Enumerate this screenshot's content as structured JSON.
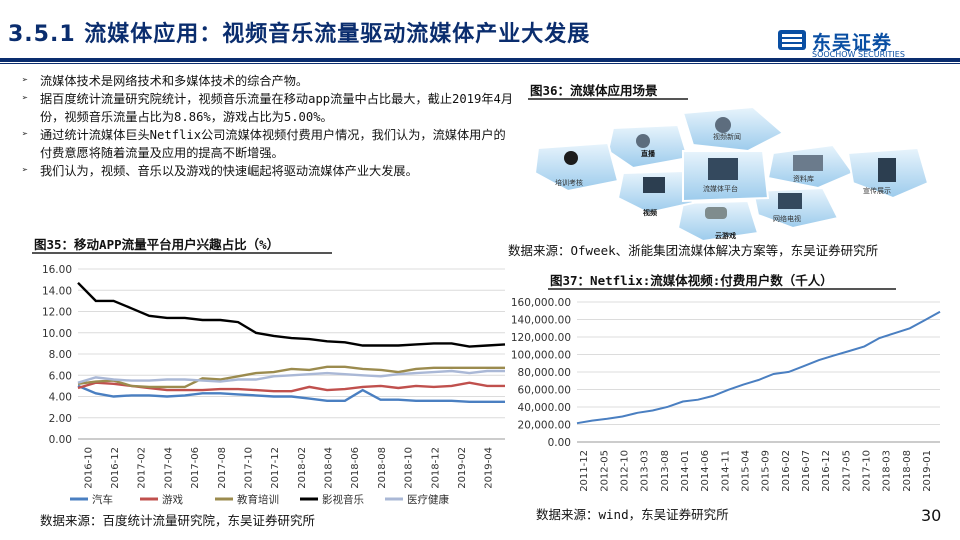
{
  "header": {
    "title": "3.5.1 流媒体应用：视频音乐流量驱动流媒体产业大发展",
    "logo_cn": "东吴证券",
    "logo_en": "SOOCHOW SECURITIES"
  },
  "bullets": [
    "流媒体技术是网络技术和多媒体技术的综合产物。",
    "据百度统计流量研究院统计，视频音乐流量在移动app流量中占比最大，截止2019年4月份，视频音乐流量占比为8.86%，游戏占比为5.00%。",
    "通过统计流媒体巨头Netflix公司流媒体视频付费用户情况，我们认为，流媒体用户的付费意愿将随着流量及应用的提高不断增强。",
    "我们认为，视频、音乐以及游戏的快速崛起将驱动流媒体产业大发展。"
  ],
  "fig36": {
    "title": "图36：流媒体应用场景",
    "labels": [
      "视频新闻",
      "资料库",
      "宣传展示",
      "网络电视",
      "云游戏",
      "视频",
      "直播",
      "培训考核",
      "流媒体平台"
    ],
    "source": "数据来源：Ofweek、浙能集团流媒体解决方案等，东吴证券研究所"
  },
  "fig35": {
    "title": "图35：移动APP流量平台用户兴趣占比（%）",
    "source": "数据来源：百度统计流量研究院，东吴证券研究所"
  },
  "fig37": {
    "title": "图37：Netflix:流媒体视频:付费用户数（千人）",
    "source": "数据来源：wind，东吴证券研究所"
  },
  "page_number": "30",
  "chart_data": [
    {
      "type": "line",
      "title": "图35：移动APP流量平台用户兴趣占比（%）",
      "ylim": [
        0,
        16
      ],
      "yticks": [
        "0.00",
        "2.00",
        "4.00",
        "6.00",
        "8.00",
        "10.00",
        "12.00",
        "14.00",
        "16.00"
      ],
      "x_ticks": [
        "2016-10",
        "2016-12",
        "2017-02",
        "2017-04",
        "2017-06",
        "2017-08",
        "2017-10",
        "2017-12",
        "2018-02",
        "2018-04",
        "2018-06",
        "2018-08",
        "2018-10",
        "2018-12",
        "2019-02",
        "2019-04"
      ],
      "legend_position": "bottom",
      "series": [
        {
          "name": "汽车",
          "color": "#4a7fc1",
          "values": [
            5.0,
            4.3,
            4.0,
            4.1,
            4.1,
            4.0,
            4.1,
            4.3,
            4.3,
            4.2,
            4.1,
            4.0,
            4.0,
            3.8,
            3.6,
            3.6,
            4.6,
            3.7,
            3.7,
            3.6,
            3.6,
            3.6,
            3.5,
            3.5,
            3.5
          ]
        },
        {
          "name": "游戏",
          "color": "#c0504d",
          "values": [
            4.8,
            5.3,
            5.2,
            5.0,
            4.8,
            4.6,
            4.6,
            4.6,
            4.7,
            4.7,
            4.6,
            4.5,
            4.5,
            4.9,
            4.6,
            4.7,
            4.9,
            5.0,
            4.8,
            5.0,
            4.9,
            5.0,
            5.3,
            5.0,
            5.0
          ]
        },
        {
          "name": "教育培训",
          "color": "#9b8b4e",
          "values": [
            5.2,
            5.4,
            5.5,
            5.0,
            4.9,
            4.9,
            4.9,
            5.7,
            5.6,
            5.9,
            6.2,
            6.3,
            6.6,
            6.5,
            6.8,
            6.8,
            6.6,
            6.5,
            6.3,
            6.6,
            6.7,
            6.7,
            6.7,
            6.7,
            6.7
          ]
        },
        {
          "name": "影视音乐",
          "color": "#000000",
          "values": [
            14.7,
            13.0,
            13.0,
            12.3,
            11.6,
            11.4,
            11.4,
            11.2,
            11.2,
            11.0,
            10.0,
            9.7,
            9.5,
            9.4,
            9.2,
            9.1,
            8.8,
            8.8,
            8.8,
            8.9,
            9.0,
            9.0,
            8.7,
            8.8,
            8.9
          ]
        },
        {
          "name": "医疗健康",
          "color": "#aab8d6",
          "values": [
            5.3,
            5.8,
            5.6,
            5.5,
            5.5,
            5.6,
            5.6,
            5.5,
            5.4,
            5.6,
            5.6,
            5.9,
            6.0,
            6.1,
            6.2,
            6.1,
            6.0,
            5.9,
            6.1,
            6.2,
            6.3,
            6.4,
            6.2,
            6.4,
            6.4
          ]
        }
      ]
    },
    {
      "type": "line",
      "title": "图37：Netflix:流媒体视频:付费用户数（千人）",
      "ylim": [
        0,
        160000
      ],
      "yticks": [
        "0.00",
        "20,000.00",
        "40,000.00",
        "60,000.00",
        "80,000.00",
        "100,000.00",
        "120,000.00",
        "140,000.00",
        "160,000.00"
      ],
      "x_ticks": [
        "2011-12",
        "2012-05",
        "2012-10",
        "2013-03",
        "2013-08",
        "2014-01",
        "2014-06",
        "2014-11",
        "2015-04",
        "2015-09",
        "2016-02",
        "2016-07",
        "2016-12",
        "2017-05",
        "2017-10",
        "2018-03",
        "2018-08",
        "2019-01"
      ],
      "series": [
        {
          "name": "付费用户数",
          "color": "#4a7fc1",
          "values": [
            21500,
            24500,
            26500,
            29200,
            33400,
            36000,
            40200,
            46300,
            48400,
            52700,
            59600,
            65600,
            70800,
            77700,
            80100,
            86700,
            93600,
            99000,
            104000,
            109250,
            118900,
            124350,
            130000,
            139260,
            148860
          ]
        }
      ]
    }
  ]
}
